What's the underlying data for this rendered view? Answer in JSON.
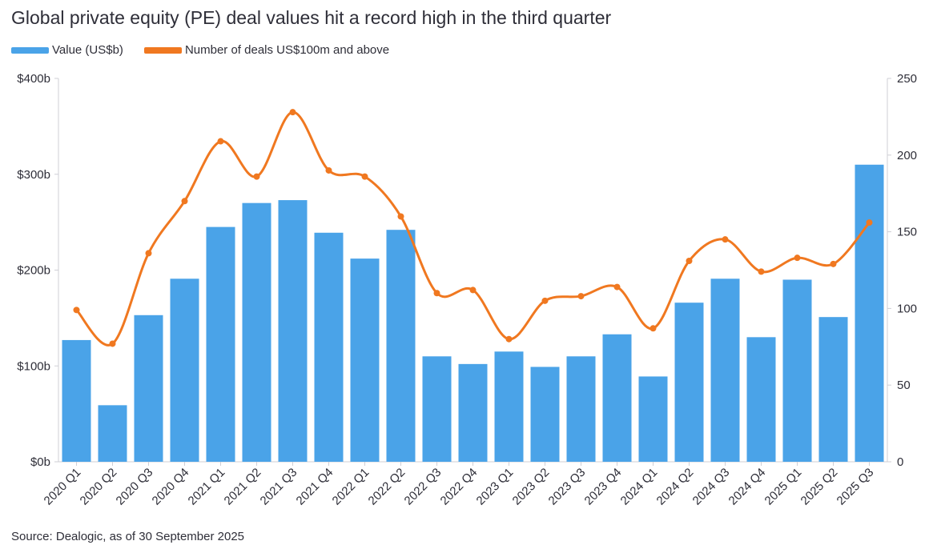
{
  "chart_data": {
    "type": "bar",
    "title": "Global private equity (PE) deal values hit a record high in the third quarter",
    "source": "Source: Dealogic, as of 30 September 2025",
    "categories": [
      "2020 Q1",
      "2020 Q2",
      "2020 Q3",
      "2020 Q4",
      "2021 Q1",
      "2021 Q2",
      "2021 Q3",
      "2021 Q4",
      "2022 Q1",
      "2022 Q2",
      "2022 Q3",
      "2022 Q4",
      "2023 Q1",
      "2023 Q2",
      "2023 Q3",
      "2023 Q4",
      "2024 Q1",
      "2024 Q2",
      "2024 Q3",
      "2024 Q4",
      "2025 Q1",
      "2025 Q2",
      "2025 Q3"
    ],
    "series": [
      {
        "name": "Value (US$b)",
        "type": "bar",
        "axis": "left",
        "color": "#4aa3e8",
        "values": [
          127,
          59,
          153,
          191,
          245,
          270,
          273,
          239,
          212,
          242,
          110,
          102,
          115,
          99,
          110,
          133,
          89,
          166,
          191,
          130,
          190,
          151,
          310
        ]
      },
      {
        "name": "Number of deals US$100m and above",
        "type": "line",
        "axis": "right",
        "color": "#f07820",
        "values": [
          99,
          77,
          136,
          170,
          209,
          186,
          228,
          190,
          186,
          160,
          110,
          112,
          80,
          105,
          108,
          114,
          87,
          131,
          145,
          124,
          133,
          129,
          156
        ]
      }
    ],
    "y_left": {
      "min": 0,
      "max": 400,
      "ticks": [
        0,
        100,
        200,
        300,
        400
      ],
      "tick_labels": [
        "$0b",
        "$100b",
        "$200b",
        "$300b",
        "$400b"
      ]
    },
    "y_right": {
      "min": 0,
      "max": 250,
      "ticks": [
        0,
        50,
        100,
        150,
        200,
        250
      ],
      "tick_labels": [
        "0",
        "50",
        "100",
        "150",
        "200",
        "250"
      ]
    },
    "legend": "top-left",
    "grid": false
  }
}
